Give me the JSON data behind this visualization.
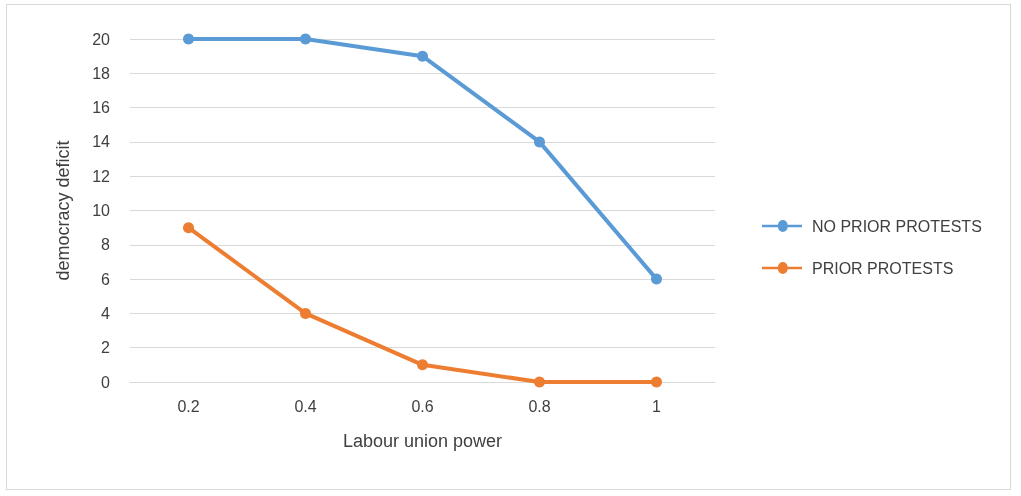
{
  "chart_data": {
    "type": "line",
    "xlabel": "Labour union power",
    "ylabel": "democracy deficit",
    "categories": [
      "0.2",
      "0.4",
      "0.6",
      "0.8",
      "1"
    ],
    "series": [
      {
        "name": "NO PRIOR PROTESTS",
        "color": "#5b9bd5",
        "values": [
          20,
          20,
          19,
          14,
          6
        ]
      },
      {
        "name": "PRIOR PROTESTS",
        "color": "#ed7d31",
        "values": [
          9,
          4,
          1,
          0,
          0
        ]
      }
    ],
    "ylim": [
      0,
      20
    ],
    "yticks": [
      0,
      2,
      4,
      6,
      8,
      10,
      12,
      14,
      16,
      18,
      20
    ],
    "grid": "y",
    "legend": "right",
    "marker": "circle",
    "line_style": "solid"
  }
}
